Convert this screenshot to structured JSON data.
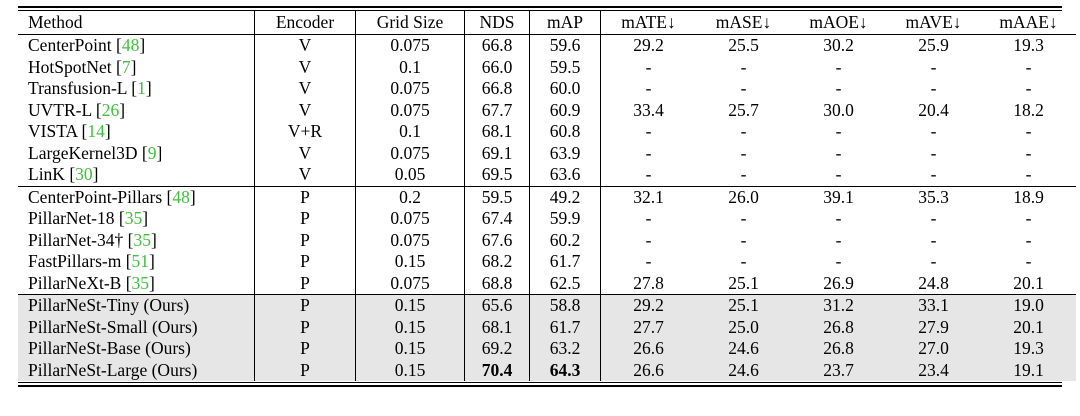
{
  "table": {
    "columns": [
      "Method",
      "Encoder",
      "Grid Size",
      "NDS",
      "mAP",
      "mATE↓",
      "mASE↓",
      "mAOE↓",
      "mAVE↓",
      "mAAE↓"
    ],
    "groups": [
      {
        "shaded": false,
        "rows": [
          {
            "name": "CenterPoint",
            "ref": "48",
            "encoder": "V",
            "grid": "0.075",
            "nds": "66.8",
            "map": "59.6",
            "mate": "29.2",
            "mase": "25.5",
            "maoe": "30.2",
            "mave": "25.9",
            "maae": "19.3"
          },
          {
            "name": "HotSpotNet",
            "ref": "7",
            "encoder": "V",
            "grid": "0.1",
            "nds": "66.0",
            "map": "59.5",
            "mate": "-",
            "mase": "-",
            "maoe": "-",
            "mave": "-",
            "maae": "-"
          },
          {
            "name": "Transfusion-L",
            "ref": "1",
            "encoder": "V",
            "grid": "0.075",
            "nds": "66.8",
            "map": "60.0",
            "mate": "-",
            "mase": "-",
            "maoe": "-",
            "mave": "-",
            "maae": "-"
          },
          {
            "name": "UVTR-L",
            "ref": "26",
            "encoder": "V",
            "grid": "0.075",
            "nds": "67.7",
            "map": "60.9",
            "mate": "33.4",
            "mase": "25.7",
            "maoe": "30.0",
            "mave": "20.4",
            "maae": "18.2"
          },
          {
            "name": "VISTA",
            "ref": "14",
            "encoder": "V+R",
            "grid": "0.1",
            "nds": "68.1",
            "map": "60.8",
            "mate": "-",
            "mase": "-",
            "maoe": "-",
            "mave": "-",
            "maae": "-"
          },
          {
            "name": "LargeKernel3D",
            "ref": "9",
            "encoder": "V",
            "grid": "0.075",
            "nds": "69.1",
            "map": "63.9",
            "mate": "-",
            "mase": "-",
            "maoe": "-",
            "mave": "-",
            "maae": "-"
          },
          {
            "name": "LinK",
            "ref": "30",
            "encoder": "V",
            "grid": "0.05",
            "nds": "69.5",
            "map": "63.6",
            "mate": "-",
            "mase": "-",
            "maoe": "-",
            "mave": "-",
            "maae": "-"
          }
        ]
      },
      {
        "shaded": false,
        "rows": [
          {
            "name": "CenterPoint-Pillars",
            "ref": "48",
            "encoder": "P",
            "grid": "0.2",
            "nds": "59.5",
            "map": "49.2",
            "mate": "32.1",
            "mase": "26.0",
            "maoe": "39.1",
            "mave": "35.3",
            "maae": "18.9"
          },
          {
            "name": "PillarNet-18",
            "ref": "35",
            "encoder": "P",
            "grid": "0.075",
            "nds": "67.4",
            "map": "59.9",
            "mate": "-",
            "mase": "-",
            "maoe": "-",
            "mave": "-",
            "maae": "-"
          },
          {
            "name": "PillarNet-34†",
            "ref": "35",
            "encoder": "P",
            "grid": "0.075",
            "nds": "67.6",
            "map": "60.2",
            "mate": "-",
            "mase": "-",
            "maoe": "-",
            "mave": "-",
            "maae": "-"
          },
          {
            "name": "FastPillars-m",
            "ref": "51",
            "encoder": "P",
            "grid": "0.15",
            "nds": "68.2",
            "map": "61.7",
            "mate": "-",
            "mase": "-",
            "maoe": "-",
            "mave": "-",
            "maae": "-"
          },
          {
            "name": "PillarNeXt-B",
            "ref": "35",
            "encoder": "P",
            "grid": "0.075",
            "nds": "68.8",
            "map": "62.5",
            "mate": "27.8",
            "mase": "25.1",
            "maoe": "26.9",
            "mave": "24.8",
            "maae": "20.1"
          }
        ]
      },
      {
        "shaded": true,
        "rows": [
          {
            "name": "PillarNeSt-Tiny (Ours)",
            "ref": "",
            "encoder": "P",
            "grid": "0.15",
            "nds": "65.6",
            "map": "58.8",
            "mate": "29.2",
            "mase": "25.1",
            "maoe": "31.2",
            "mave": "33.1",
            "maae": "19.0"
          },
          {
            "name": "PillarNeSt-Small (Ours)",
            "ref": "",
            "encoder": "P",
            "grid": "0.15",
            "nds": "68.1",
            "map": "61.7",
            "mate": "27.7",
            "mase": "25.0",
            "maoe": "26.8",
            "mave": "27.9",
            "maae": "20.1"
          },
          {
            "name": "PillarNeSt-Base (Ours)",
            "ref": "",
            "encoder": "P",
            "grid": "0.15",
            "nds": "69.2",
            "map": "63.2",
            "mate": "26.6",
            "mase": "24.6",
            "maoe": "26.8",
            "mave": "27.0",
            "maae": "19.3"
          },
          {
            "name": "PillarNeSt-Large (Ours)",
            "ref": "",
            "encoder": "P",
            "grid": "0.15",
            "nds": "70.4",
            "map": "64.3",
            "mate": "26.6",
            "mase": "24.6",
            "maoe": "23.7",
            "mave": "23.4",
            "maae": "19.1",
            "bold": [
              "nds",
              "map"
            ]
          }
        ]
      }
    ]
  }
}
